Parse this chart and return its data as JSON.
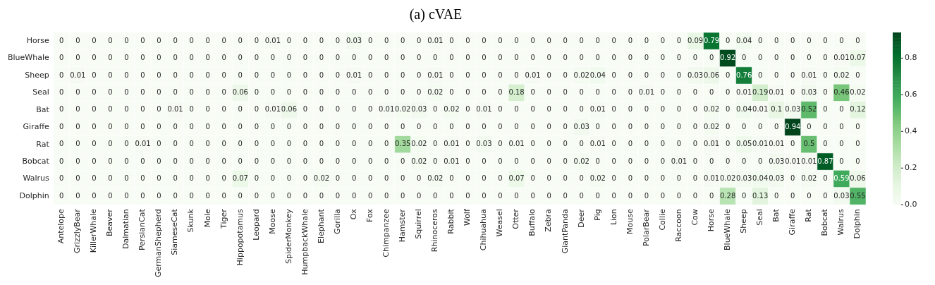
{
  "chart_data": {
    "type": "heatmap",
    "title": "(a) cVAE",
    "categories": [
      "Antelope",
      "GrizzlyBear",
      "KillerWhale",
      "Beaver",
      "Dalmatian",
      "PersianCat",
      "GermanShepherd",
      "SiameseCat",
      "Skunk",
      "Mole",
      "Tiger",
      "Hippopotamus",
      "Leopard",
      "Moose",
      "SpiderMonkey",
      "HumpbackWhale",
      "Elephant",
      "Gorilla",
      "Ox",
      "Fox",
      "Chimpanzee",
      "Hamster",
      "Squirrel",
      "Rhinoceros",
      "Rabbit",
      "Wolf",
      "Chihuahua",
      "Weasel",
      "Otter",
      "Buffalo",
      "Zebra",
      "GiantPanda",
      "Deer",
      "Pig",
      "Lion",
      "Mouse",
      "PolarBear",
      "Collie",
      "Raccoon",
      "Cow",
      "Horse",
      "BlueWhale",
      "Sheep",
      "Seal",
      "Bat",
      "Giraffe",
      "Rat",
      "Bobcat",
      "Walrus",
      "Dolphin"
    ],
    "y_categories": [
      "Horse",
      "BlueWhale",
      "Sheep",
      "Seal",
      "Bat",
      "Giraffe",
      "Rat",
      "Bobcat",
      "Walrus",
      "Dolphin"
    ],
    "cells": [
      [
        0,
        0,
        0,
        0,
        0,
        0,
        0,
        0,
        0,
        0,
        0,
        0,
        0,
        0.01,
        0,
        0,
        0,
        0,
        0.03,
        0,
        0,
        0,
        0,
        0.01,
        0,
        0,
        0,
        0,
        0,
        0,
        0,
        0,
        0,
        0,
        0,
        0,
        0,
        0,
        0,
        0.09,
        0.79,
        0,
        0.04,
        0,
        0,
        0,
        0,
        0,
        0,
        0
      ],
      [
        0,
        0,
        0,
        0,
        0,
        0,
        0,
        0,
        0,
        0,
        0,
        0,
        0,
        0,
        0,
        0,
        0,
        0,
        0,
        0,
        0,
        0,
        0,
        0,
        0,
        0,
        0,
        0,
        0,
        0,
        0,
        0,
        0,
        0,
        0,
        0,
        0,
        0,
        0,
        0,
        0,
        0.92,
        0,
        0,
        0,
        0,
        0,
        0,
        0.01,
        0.07
      ],
      [
        0,
        0.01,
        0,
        0,
        0,
        0,
        0,
        0,
        0,
        0,
        0,
        0,
        0,
        0,
        0,
        0,
        0,
        0,
        0.01,
        0,
        0,
        0,
        0,
        0.01,
        0,
        0,
        0,
        0,
        0,
        0.01,
        0,
        0,
        0.02,
        0.04,
        0,
        0,
        0,
        0,
        0,
        0.03,
        0.06,
        0,
        0.76,
        0,
        0,
        0,
        0.01,
        0,
        0.02,
        0
      ],
      [
        0,
        0,
        0,
        0,
        0,
        0,
        0,
        0,
        0,
        0,
        0,
        0.06,
        0,
        0,
        0,
        0,
        0,
        0,
        0,
        0,
        0,
        0,
        0,
        0.02,
        0,
        0,
        0,
        0,
        0.18,
        0,
        0,
        0,
        0,
        0,
        0,
        0,
        0.01,
        0,
        0,
        0,
        0,
        0,
        0.01,
        0.19,
        0.01,
        0,
        0.03,
        0,
        0.46,
        0.02
      ],
      [
        0,
        0,
        0,
        0,
        0,
        0,
        0,
        0.01,
        0,
        0,
        0,
        0,
        0,
        0.01,
        0.06,
        0,
        0,
        0,
        0,
        0,
        0.01,
        0.02,
        0.03,
        0,
        0.02,
        0,
        0.01,
        0,
        0,
        0,
        0,
        0,
        0,
        0.01,
        0,
        0,
        0,
        0,
        0,
        0,
        0.02,
        0,
        0.04,
        0.01,
        0.1,
        0.03,
        0.52,
        0,
        0,
        0.12
      ],
      [
        0,
        0,
        0,
        0,
        0,
        0,
        0,
        0,
        0,
        0,
        0,
        0,
        0,
        0,
        0,
        0,
        0,
        0,
        0,
        0,
        0,
        0,
        0,
        0,
        0,
        0,
        0,
        0,
        0,
        0,
        0,
        0,
        0.03,
        0,
        0,
        0,
        0,
        0,
        0,
        0,
        0.02,
        0,
        0,
        0,
        0,
        0.94,
        0,
        0,
        0,
        0
      ],
      [
        0,
        0,
        0,
        0,
        0,
        0.01,
        0,
        0,
        0,
        0,
        0,
        0,
        0,
        0,
        0,
        0,
        0,
        0,
        0,
        0,
        0,
        0.35,
        0.02,
        0,
        0.01,
        0,
        0.03,
        0,
        0.01,
        0,
        0,
        0,
        0,
        0.01,
        0,
        0,
        0,
        0,
        0,
        0,
        0.01,
        0,
        0.05,
        0.01,
        0.01,
        0,
        0.5,
        0,
        0,
        0
      ],
      [
        0,
        0,
        0,
        0,
        0,
        0,
        0,
        0,
        0,
        0,
        0,
        0,
        0,
        0,
        0,
        0,
        0,
        0,
        0,
        0,
        0,
        0,
        0.02,
        0,
        0.01,
        0,
        0,
        0,
        0,
        0,
        0,
        0,
        0.02,
        0,
        0,
        0,
        0,
        0,
        0.01,
        0,
        0,
        0,
        0,
        0,
        0.03,
        0.01,
        0.01,
        0.87,
        0,
        0
      ],
      [
        0,
        0,
        0,
        0,
        0,
        0,
        0,
        0,
        0,
        0,
        0,
        0.07,
        0,
        0,
        0,
        0,
        0.02,
        0,
        0,
        0,
        0,
        0,
        0,
        0.02,
        0,
        0,
        0,
        0,
        0.07,
        0,
        0,
        0,
        0,
        0.02,
        0,
        0,
        0,
        0,
        0,
        0,
        0.01,
        0.02,
        0.03,
        0.04,
        0.03,
        0,
        0.02,
        0,
        0.59,
        0.06
      ],
      [
        0,
        0,
        0,
        0,
        0,
        0,
        0,
        0,
        0,
        0,
        0,
        0,
        0,
        0,
        0,
        0,
        0,
        0,
        0,
        0,
        0,
        0,
        0,
        0,
        0,
        0,
        0,
        0,
        0,
        0,
        0,
        0,
        0,
        0,
        0,
        0,
        0,
        0,
        0,
        0,
        0,
        0.28,
        0,
        0.13,
        0,
        0,
        0,
        0,
        0.03,
        0.55
      ]
    ],
    "clim": [
      0,
      0.94
    ],
    "cticks": [
      {
        "value": 0,
        "label": "0.0"
      },
      {
        "value": 0.2,
        "label": "0.2"
      },
      {
        "value": 0.4,
        "label": "0.4"
      },
      {
        "value": 0.6,
        "label": "0.6"
      },
      {
        "value": 0.8,
        "label": "0.8"
      }
    ],
    "data_labels": true
  }
}
